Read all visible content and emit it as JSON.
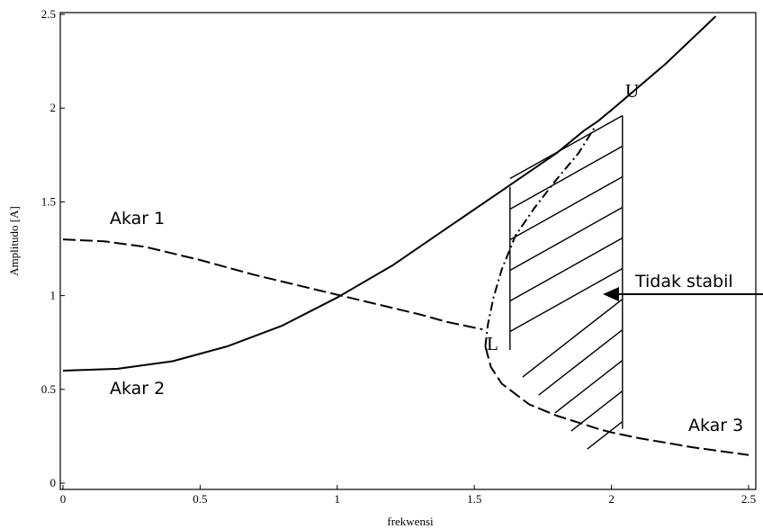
{
  "chart_data": {
    "type": "line",
    "xlabel": "frekwensi",
    "ylabel": "Amplitudo [A]",
    "xlim": [
      0,
      2.5
    ],
    "ylim": [
      0,
      2.5
    ],
    "x_ticks": [
      "0",
      "0.5",
      "1",
      "1.5",
      "2",
      "2.5"
    ],
    "y_ticks": [
      "0",
      "0.5",
      "1",
      "1.5",
      "2",
      "2.5"
    ],
    "grid": false,
    "series": [
      {
        "name": "Akar 1",
        "style": "dashed",
        "points": [
          [
            0,
            1.3
          ],
          [
            0.15,
            1.29
          ],
          [
            0.3,
            1.26
          ],
          [
            0.5,
            1.19
          ],
          [
            0.7,
            1.11
          ],
          [
            0.9,
            1.04
          ],
          [
            1.1,
            0.97
          ],
          [
            1.3,
            0.9
          ],
          [
            1.4,
            0.86
          ],
          [
            1.53,
            0.82
          ]
        ]
      },
      {
        "name": "Akar 2",
        "style": "solid",
        "points": [
          [
            0,
            0.6
          ],
          [
            0.2,
            0.61
          ],
          [
            0.4,
            0.65
          ],
          [
            0.6,
            0.73
          ],
          [
            0.8,
            0.84
          ],
          [
            1.0,
            0.99
          ],
          [
            1.2,
            1.16
          ],
          [
            1.4,
            1.36
          ],
          [
            1.6,
            1.56
          ],
          [
            1.8,
            1.76
          ],
          [
            1.9,
            1.88
          ],
          [
            1.95,
            1.93
          ],
          [
            2.0,
            1.99
          ],
          [
            2.2,
            2.24
          ],
          [
            2.38,
            2.49
          ]
        ]
      },
      {
        "name": "",
        "style": "dash-dot",
        "points": [
          [
            1.54,
            0.73
          ],
          [
            1.55,
            0.85
          ],
          [
            1.57,
            0.99
          ],
          [
            1.6,
            1.14
          ],
          [
            1.65,
            1.32
          ],
          [
            1.72,
            1.47
          ],
          [
            1.8,
            1.62
          ],
          [
            1.88,
            1.76
          ],
          [
            1.94,
            1.9
          ]
        ]
      },
      {
        "name": "Akar 3",
        "style": "dashed",
        "points": [
          [
            1.54,
            0.73
          ],
          [
            1.56,
            0.62
          ],
          [
            1.6,
            0.53
          ],
          [
            1.7,
            0.42
          ],
          [
            1.8,
            0.36
          ],
          [
            1.95,
            0.29
          ],
          [
            2.0,
            0.27
          ],
          [
            2.1,
            0.24
          ],
          [
            2.3,
            0.19
          ],
          [
            2.5,
            0.15
          ]
        ]
      }
    ],
    "unstable_region": {
      "x": [
        1.63,
        2.04
      ],
      "hatched": true
    },
    "annotations": {
      "akar1": "Akar 1",
      "akar2": "Akar 2",
      "akar3": "Akar 3",
      "point_l": "L",
      "point_u": "U",
      "unstable": "Tidak stabil"
    }
  }
}
